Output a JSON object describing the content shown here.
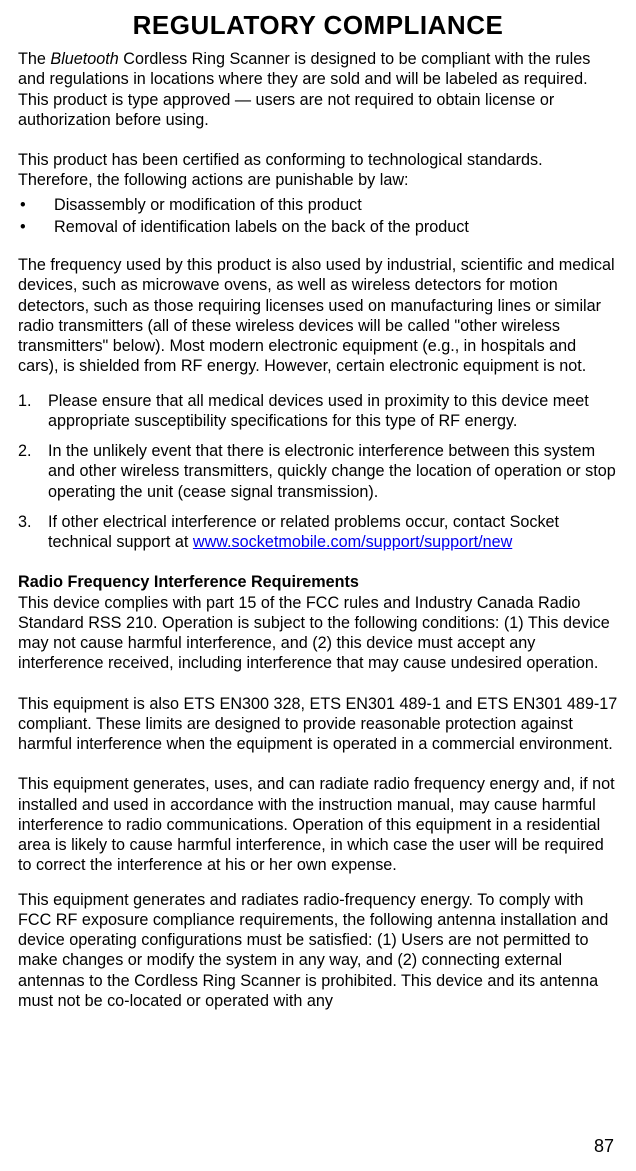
{
  "title": "REGULATORY COMPLIANCE",
  "intro_prefix": "The ",
  "intro_product": "Bluetooth",
  "intro_rest": " Cordless Ring Scanner is designed to be compliant with the rules and regulations in locations where they are sold and will be labeled as required.  This product is type approved — users are not required to obtain license or authorization before using.",
  "cert_para": "This product has been certified as conforming to technological standards. Therefore, the following actions are punishable by law:",
  "bullets": [
    "Disassembly or modification of this product",
    "Removal of identification labels on the back of the product"
  ],
  "freq_para": "The frequency used by this product is also used by industrial, scientific and medical devices, such as microwave ovens, as well as wireless detectors for motion detectors, such as those requiring licenses used on manufacturing lines or similar radio transmitters (all of these wireless devices will be called \"other wireless transmitters\" below). Most modern electronic equipment (e.g., in hospitals and cars), is shielded from RF energy. However, certain electronic equipment is not.",
  "numbered": [
    "Please ensure that all medical devices used in proximity to this device meet appropriate susceptibility specifications for this type of RF energy.",
    "In the unlikely event that there is electronic interference between this system and other wireless transmitters, quickly change the location of operation or stop operating the unit (cease signal transmission)."
  ],
  "num3_prefix": "If other electrical interference or related problems occur, contact Socket technical support at ",
  "num3_link": "www.socketmobile.com/support/support/new",
  "rf_heading": "Radio Frequency Interference Requirements",
  "rf_p1": "This device complies with part 15 of the FCC rules and Industry Canada Radio Standard RSS 210. Operation is subject to the following conditions: (1) This device may not cause harmful interference, and (2) this device must accept any interference received, including interference that may cause undesired operation.",
  "rf_p2": "This equipment is also ETS EN300 328, ETS EN301 489-1 and ETS EN301 489-17 compliant.  These limits are designed to provide reasonable protection against harmful interference when the equipment is operated in a commercial environment.",
  "rf_p3": "This equipment generates, uses, and can radiate radio frequency energy and, if not installed and used in accordance with the instruction manual, may cause harmful interference to radio communications. Operation of this equipment in a residential area is likely to cause harmful interference, in which case the user will be required to correct the interference at his or her own expense.",
  "rf_p4": "This equipment generates and radiates radio-frequency energy. To comply with FCC RF exposure compliance requirements, the following antenna installation and device operating configurations must be satisfied: (1) Users are not permitted to make changes or modify the system in any way, and (2) connecting external antennas to the Cordless Ring Scanner is prohibited. This device and its antenna must not be co-located or operated with any",
  "page_number": "87",
  "colors": {
    "text": "#000000",
    "link": "#0000ee",
    "background": "#ffffff"
  }
}
